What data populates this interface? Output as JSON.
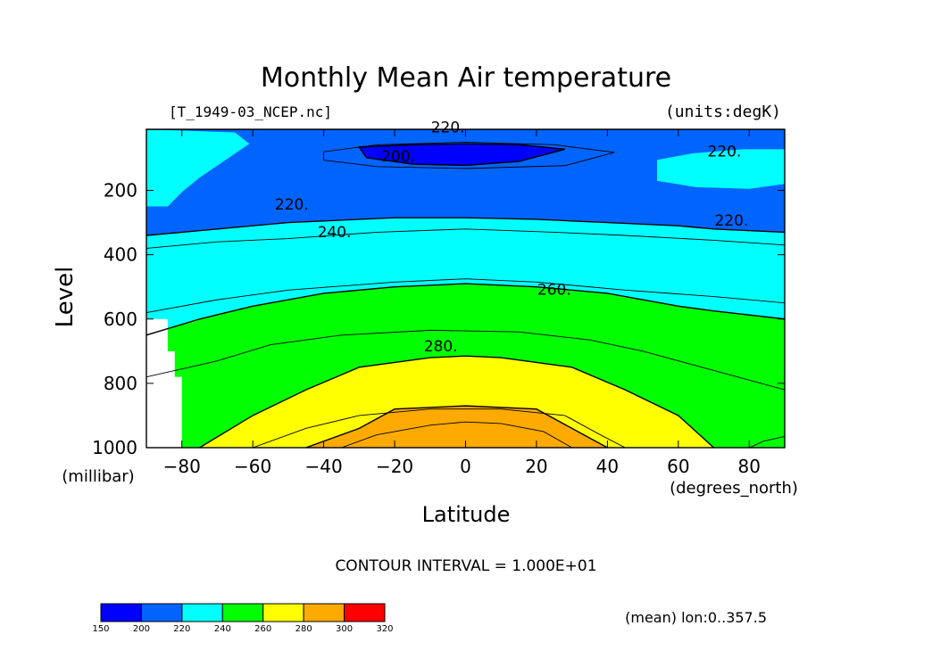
{
  "chart_data": {
    "type": "contour",
    "title": "Monthly Mean Air temperature",
    "file_label": "[T_1949-03_NCEP.nc]",
    "units_label": "(units:degK)",
    "xlabel": "Latitude",
    "ylabel": "Level",
    "x_unit_label": "(degrees_north)",
    "y_unit_label": "(millibar)",
    "xlim": [
      -90,
      90
    ],
    "ylim": [
      1000,
      10
    ],
    "x_ticks": [
      -80,
      -60,
      -40,
      -20,
      0,
      20,
      40,
      60,
      80
    ],
    "x_tick_labels": [
      "−80",
      "−60",
      "−40",
      "−20",
      "0",
      "20",
      "40",
      "60",
      "80"
    ],
    "y_ticks": [
      1000,
      800,
      600,
      400,
      200
    ],
    "y_tick_labels": [
      "1000",
      "800",
      "600",
      "400",
      "200"
    ],
    "contour_interval_text": "CONTOUR INTERVAL = 1.000E+01",
    "mean_note": "(mean) lon:0..357.5",
    "contour_labels": [
      {
        "text": "220.",
        "x": -5,
        "y": 20
      },
      {
        "text": "200.",
        "x": -19,
        "y": 110
      },
      {
        "text": "220.",
        "x": 73,
        "y": 95
      },
      {
        "text": "220.",
        "x": -49,
        "y": 260
      },
      {
        "text": "240.",
        "x": -37,
        "y": 345
      },
      {
        "text": "220.",
        "x": 75,
        "y": 310
      },
      {
        "text": "260.",
        "x": 25,
        "y": 525
      },
      {
        "text": "280.",
        "x": -7,
        "y": 700
      }
    ],
    "color_levels": [
      150,
      200,
      220,
      240,
      260,
      280,
      300,
      320
    ],
    "colors": [
      "#0000ff",
      "#0064ff",
      "#00ffff",
      "#00ff00",
      "#ffff00",
      "#ffaa00",
      "#ff0000"
    ],
    "colorbar_labels": [
      "150",
      "200",
      "220",
      "240",
      "260",
      "280",
      "300",
      "320"
    ],
    "regions": [
      {
        "name": "band-200-220",
        "color": "#0064ff",
        "points": [
          [
            -90,
            10
          ],
          [
            90,
            10
          ],
          [
            90,
            330
          ],
          [
            70,
            320
          ],
          [
            60,
            310
          ],
          [
            40,
            300
          ],
          [
            20,
            290
          ],
          [
            0,
            285
          ],
          [
            -20,
            285
          ],
          [
            -30,
            290
          ],
          [
            -50,
            300
          ],
          [
            -60,
            310
          ],
          [
            -70,
            320
          ],
          [
            -80,
            330
          ],
          [
            -90,
            340
          ]
        ]
      },
      {
        "name": "band-220-240",
        "color": "#00ffff",
        "points": [
          [
            -90,
            340
          ],
          [
            -80,
            330
          ],
          [
            -70,
            320
          ],
          [
            -60,
            310
          ],
          [
            -50,
            300
          ],
          [
            -30,
            290
          ],
          [
            -20,
            285
          ],
          [
            0,
            285
          ],
          [
            20,
            290
          ],
          [
            40,
            300
          ],
          [
            60,
            310
          ],
          [
            70,
            320
          ],
          [
            90,
            330
          ],
          [
            90,
            600
          ],
          [
            70,
            575
          ],
          [
            60,
            560
          ],
          [
            40,
            520
          ],
          [
            20,
            500
          ],
          [
            0,
            490
          ],
          [
            -20,
            500
          ],
          [
            -40,
            520
          ],
          [
            -60,
            560
          ],
          [
            -75,
            600
          ],
          [
            -90,
            650
          ]
        ]
      },
      {
        "name": "band-240-260",
        "color": "#00ff00",
        "points": [
          [
            -90,
            650
          ],
          [
            -75,
            600
          ],
          [
            -60,
            560
          ],
          [
            -40,
            520
          ],
          [
            -20,
            500
          ],
          [
            0,
            490
          ],
          [
            20,
            500
          ],
          [
            40,
            520
          ],
          [
            60,
            560
          ],
          [
            70,
            575
          ],
          [
            90,
            600
          ],
          [
            90,
            1000
          ],
          [
            70,
            1000
          ],
          [
            60,
            900
          ],
          [
            45,
            820
          ],
          [
            30,
            750
          ],
          [
            10,
            720
          ],
          [
            0,
            715
          ],
          [
            -10,
            720
          ],
          [
            -30,
            750
          ],
          [
            -45,
            820
          ],
          [
            -60,
            900
          ],
          [
            -75,
            1000
          ],
          [
            -90,
            1000
          ]
        ]
      },
      {
        "name": "band-260-280",
        "color": "#ffff00",
        "points": [
          [
            -75,
            1000
          ],
          [
            -60,
            900
          ],
          [
            -45,
            820
          ],
          [
            -30,
            750
          ],
          [
            -10,
            720
          ],
          [
            0,
            715
          ],
          [
            10,
            720
          ],
          [
            30,
            750
          ],
          [
            45,
            820
          ],
          [
            60,
            900
          ],
          [
            70,
            1000
          ],
          [
            40,
            1000
          ],
          [
            30,
            940
          ],
          [
            20,
            880
          ],
          [
            0,
            870
          ],
          [
            -20,
            880
          ],
          [
            -30,
            940
          ],
          [
            -45,
            1000
          ]
        ]
      },
      {
        "name": "band-280-300",
        "color": "#ffaa00",
        "points": [
          [
            -45,
            1000
          ],
          [
            -30,
            940
          ],
          [
            -20,
            880
          ],
          [
            0,
            870
          ],
          [
            20,
            880
          ],
          [
            30,
            940
          ],
          [
            40,
            1000
          ]
        ]
      }
    ]
  }
}
